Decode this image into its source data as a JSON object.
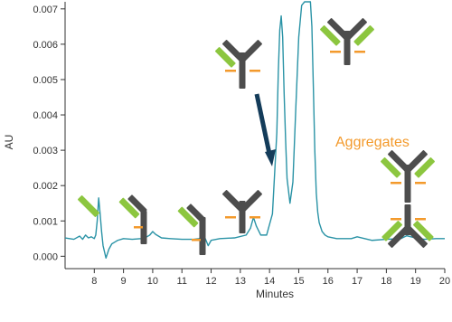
{
  "chart_data": {
    "type": "line",
    "title": "",
    "xlabel": "Minutes",
    "ylabel": "AU",
    "xlim": [
      7,
      20
    ],
    "ylim": [
      -0.00035,
      0.0072
    ],
    "x_ticks": [
      "8",
      "9",
      "10",
      "11",
      "12",
      "13",
      "14",
      "15",
      "16",
      "17",
      "18",
      "19",
      "20"
    ],
    "y_ticks": [
      "0.000",
      "0.001",
      "0.002",
      "0.003",
      "0.004",
      "0.005",
      "0.006",
      "0.007"
    ],
    "grid": false,
    "series": [
      {
        "color": "#2a93a6",
        "x": [
          7.0,
          7.3,
          7.5,
          7.6,
          7.7,
          7.8,
          7.9,
          8.0,
          8.05,
          8.1,
          8.15,
          8.2,
          8.25,
          8.3,
          8.4,
          8.5,
          8.6,
          8.7,
          8.8,
          9.0,
          9.3,
          9.6,
          9.8,
          9.9,
          10.0,
          10.1,
          10.3,
          10.6,
          11.0,
          11.4,
          11.6,
          11.7,
          11.8,
          11.9,
          12.0,
          12.3,
          12.8,
          13.2,
          13.35,
          13.45,
          13.55,
          13.7,
          13.9,
          14.1,
          14.25,
          14.3,
          14.35,
          14.4,
          14.45,
          14.5,
          14.55,
          14.6,
          14.7,
          14.8,
          14.9,
          15.0,
          15.1,
          15.2,
          15.25,
          15.3,
          15.35,
          15.4,
          15.45,
          15.5,
          15.55,
          15.6,
          15.65,
          15.7,
          15.8,
          15.9,
          16.0,
          16.3,
          16.8,
          17.0,
          17.5,
          18.0,
          18.5,
          18.7,
          19.0,
          19.3,
          19.7,
          20.0
        ],
        "y": [
          0.00052,
          0.00048,
          0.00057,
          0.00048,
          0.0006,
          0.00052,
          0.00055,
          0.0005,
          0.0006,
          0.001,
          0.00165,
          0.0012,
          0.0007,
          0.0003,
          -5e-05,
          0.0002,
          0.00035,
          0.0004,
          0.00045,
          0.0005,
          0.00048,
          0.0005,
          0.00055,
          0.0006,
          0.0007,
          0.00062,
          0.00052,
          0.0005,
          0.00048,
          0.00048,
          0.0005,
          0.00065,
          0.0005,
          0.0003,
          0.00045,
          0.0005,
          0.00052,
          0.0006,
          0.0008,
          0.0011,
          0.00085,
          0.0006,
          0.0006,
          0.0012,
          0.0035,
          0.0052,
          0.0064,
          0.0068,
          0.0062,
          0.0046,
          0.0033,
          0.0022,
          0.0015,
          0.0021,
          0.0042,
          0.0062,
          0.0071,
          0.0072,
          0.0072,
          0.0072,
          0.0072,
          0.0072,
          0.0065,
          0.0048,
          0.003,
          0.0018,
          0.00125,
          0.00095,
          0.0007,
          0.0006,
          0.00055,
          0.0005,
          0.0005,
          0.00055,
          0.00045,
          0.00048,
          0.0005,
          0.00058,
          0.00052,
          0.00048,
          0.0005,
          0.0005
        ]
      }
    ],
    "annotations": [
      {
        "text": "Aggregates",
        "color": "#f39a2c"
      }
    ],
    "arrow_color": "#143c5a"
  },
  "icon_colors": {
    "body": "#4d4d4d",
    "light_chain": "#8cc63f",
    "marker": "#f39a2c"
  }
}
